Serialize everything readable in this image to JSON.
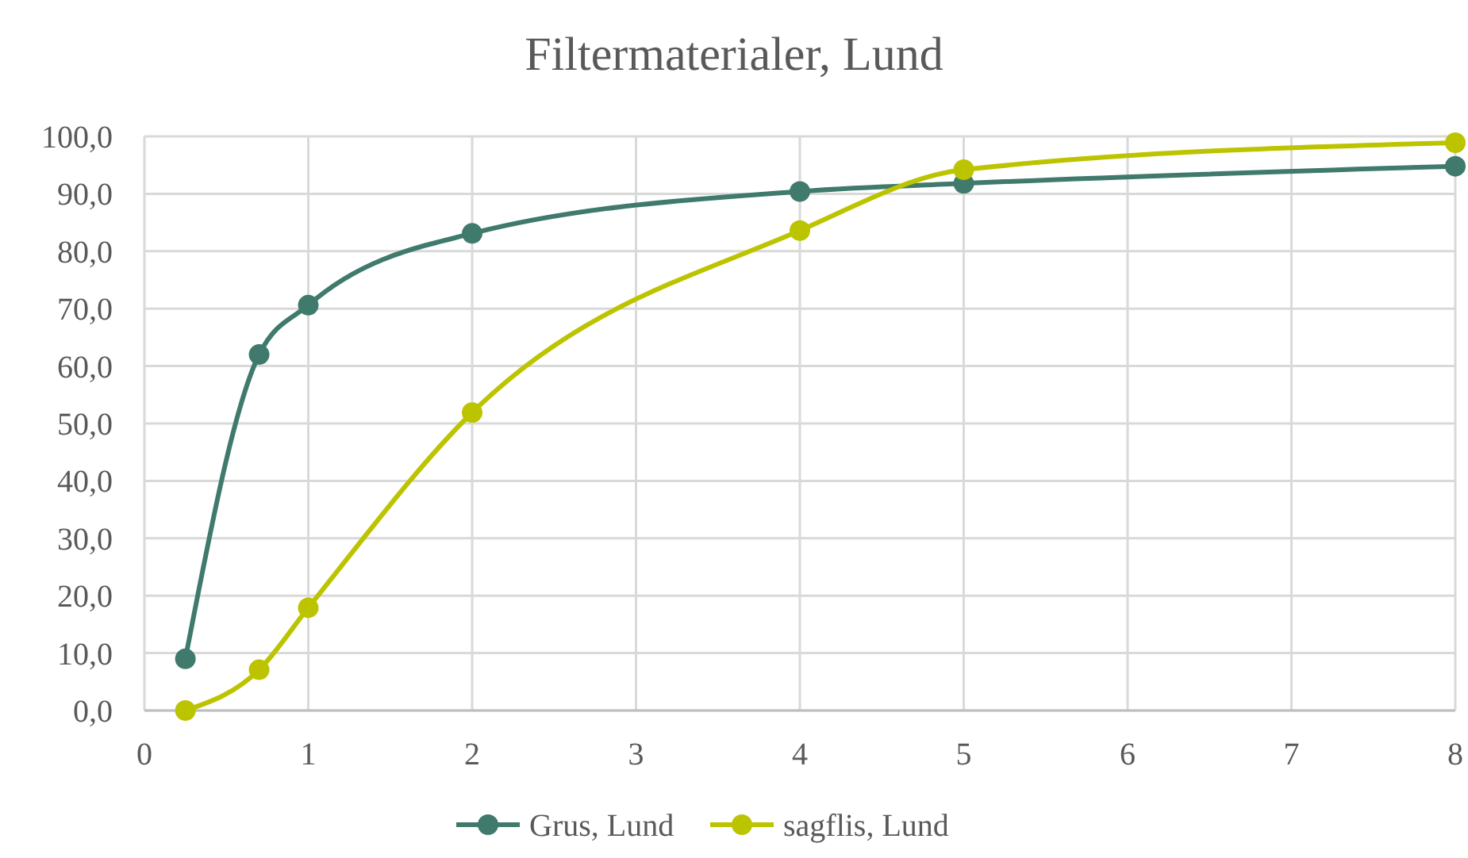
{
  "chart_data": {
    "type": "line",
    "title": "Filtermaterialer, Lund",
    "series": [
      {
        "name": "Grus, Lund",
        "color": "#3f7a6c",
        "x": [
          0.25,
          0.7,
          1,
          2,
          4,
          5,
          8
        ],
        "values": [
          9,
          62,
          70.6,
          83.1,
          90.4,
          91.8,
          94.8
        ]
      },
      {
        "name": "sagflis, Lund",
        "color": "#bcc400",
        "x": [
          0.25,
          0.7,
          1,
          2,
          4,
          5,
          8
        ],
        "values": [
          0,
          7.1,
          17.9,
          51.9,
          83.6,
          94.2,
          98.9
        ]
      }
    ],
    "xlim": [
      0,
      8
    ],
    "xticks": [
      0,
      1,
      2,
      3,
      4,
      5,
      6,
      7,
      8
    ],
    "ylim": [
      0,
      100
    ],
    "yticks": [
      {
        "value": 0,
        "label": "0,0"
      },
      {
        "value": 10,
        "label": "10,0"
      },
      {
        "value": 20,
        "label": "20,0"
      },
      {
        "value": 30,
        "label": "30,0"
      },
      {
        "value": 40,
        "label": "40,0"
      },
      {
        "value": 50,
        "label": "50,0"
      },
      {
        "value": 60,
        "label": "60,0"
      },
      {
        "value": 70,
        "label": "70,0"
      },
      {
        "value": 80,
        "label": "80,0"
      },
      {
        "value": 90,
        "label": "90,0"
      },
      {
        "value": 100,
        "label": "100,0"
      }
    ],
    "grid": true,
    "legend": "bottom",
    "marker": "circle",
    "line_style": "solid"
  }
}
